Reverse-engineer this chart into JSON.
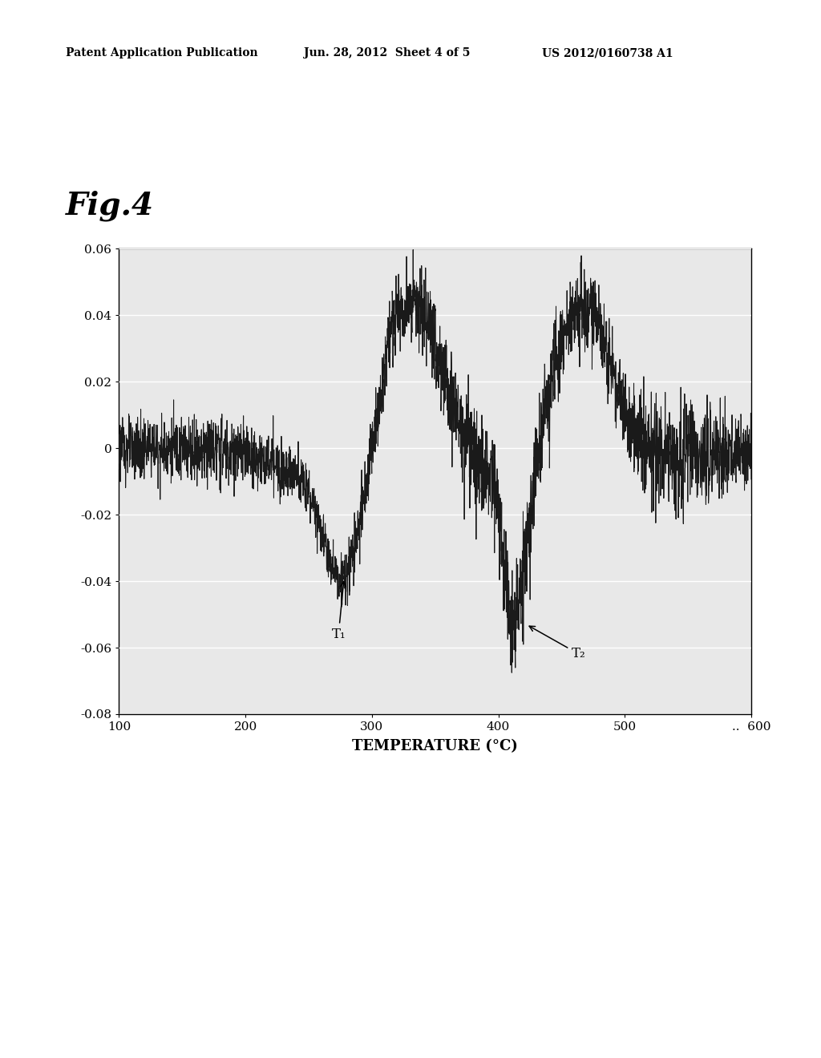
{
  "title_fig": "Fig.4",
  "header_left": "Patent Application Publication",
  "header_center": "Jun. 28, 2012  Sheet 4 of 5",
  "header_right": "US 2012/0160738 A1",
  "xlabel": "TEMPERATURE (°C)",
  "xlim": [
    100,
    600
  ],
  "ylim": [
    -0.08,
    0.06
  ],
  "xticks": [
    100,
    200,
    300,
    400,
    500,
    600
  ],
  "xtick_labels": [
    "100",
    "200",
    "300",
    "400",
    "500",
    "..  600"
  ],
  "yticks": [
    -0.08,
    -0.06,
    -0.04,
    -0.02,
    0,
    0.02,
    0.04,
    0.06
  ],
  "ytick_labels": [
    "-0.08",
    "-0.06",
    "-0.04",
    "-0.02",
    "0",
    "0.02",
    "0.04",
    "0.06"
  ],
  "annotation_T1": "T₁",
  "annotation_T2": "T₂",
  "line_color": "#1a1a1a",
  "background_color": "#ffffff",
  "plot_bg_color": "#e8e8e8",
  "grid_color": "#ffffff",
  "header_fontsize": 10,
  "fig_label_fontsize": 28,
  "tick_fontsize": 11,
  "xlabel_fontsize": 13,
  "annot_fontsize": 12
}
